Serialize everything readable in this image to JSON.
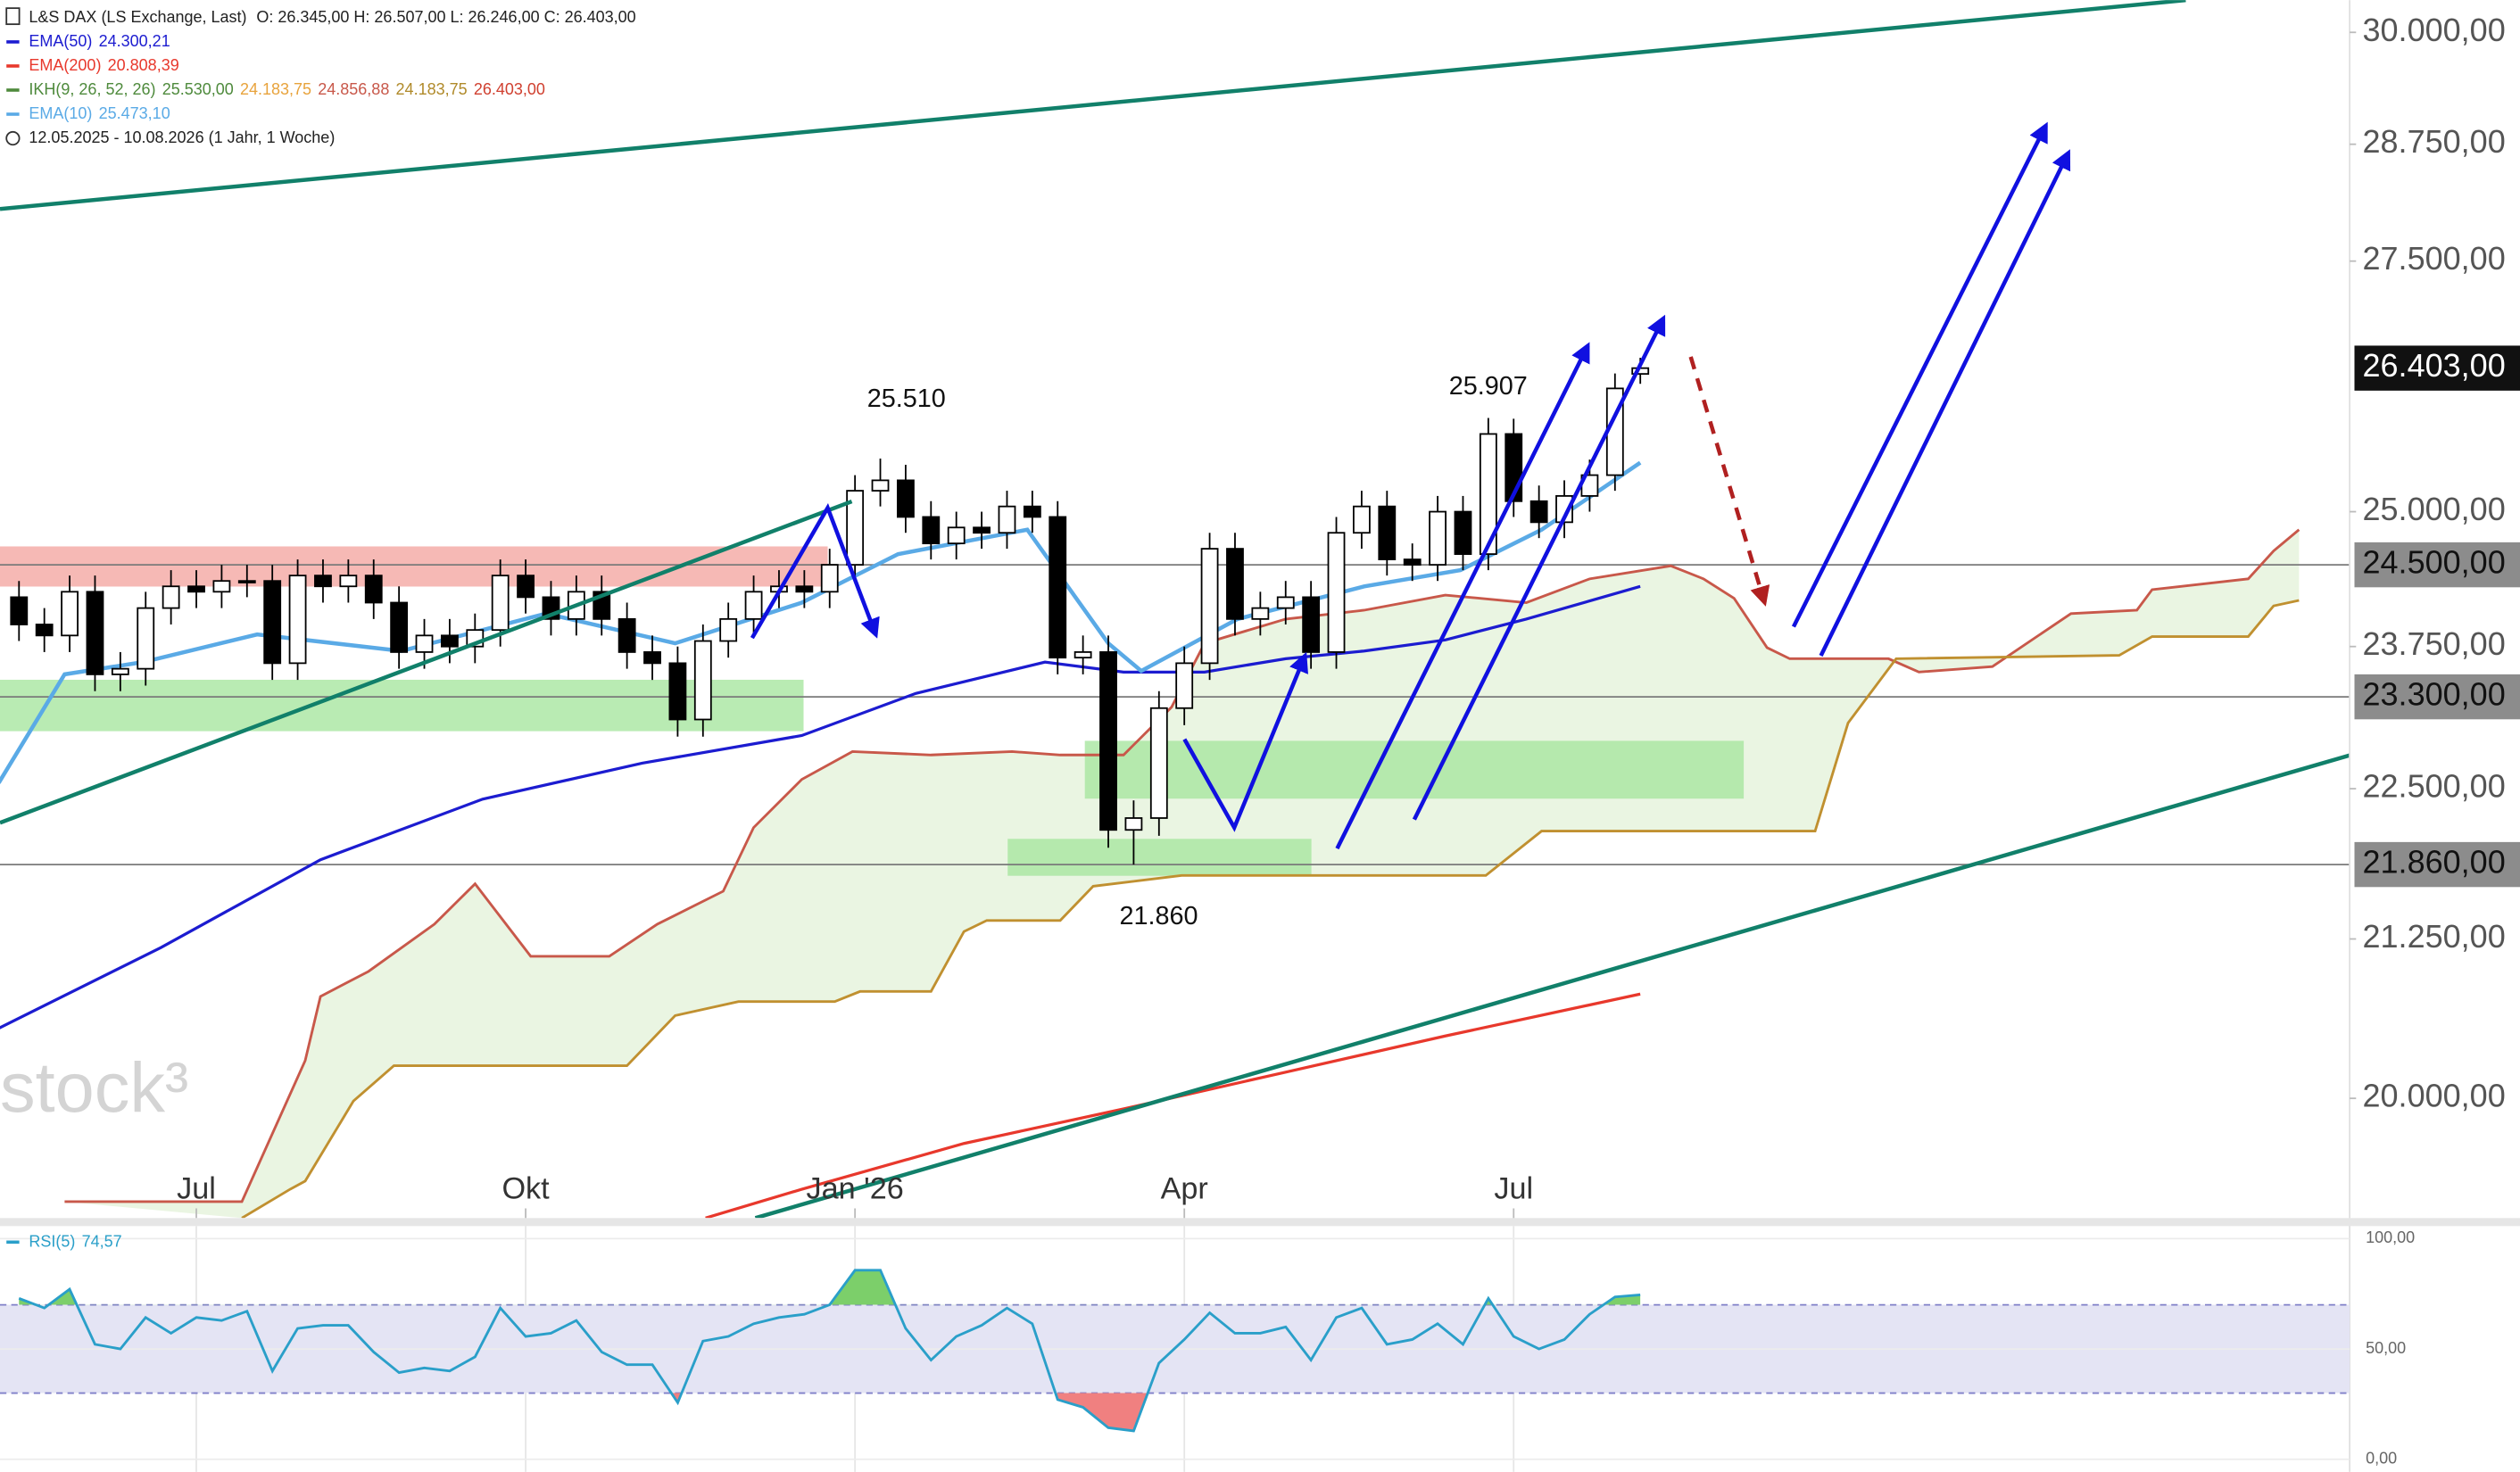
{
  "chart_data": [
    {
      "type": "candlestick",
      "title": "L&S DAX (LS Exchange, Last)",
      "ohlc_text": "O: 26.345,00  H: 26.507,00  L: 26.246,00  C: 26.403,00",
      "date_range": "12.05.2025 - 10.08.2026  (1 Jahr, 1 Woche)",
      "watermark": "stock³",
      "log_scale": true,
      "xlim": [
        -0.75,
        92
      ],
      "xticks": [
        {
          "value": 7,
          "label": "Jul"
        },
        {
          "value": 20,
          "label": "Okt"
        },
        {
          "value": 33,
          "label": "Jan '26"
        },
        {
          "value": 46,
          "label": "Apr"
        },
        {
          "value": 59,
          "label": "Jul"
        }
      ],
      "ylim": [
        19110,
        30370
      ],
      "yticks": [
        {
          "value": 20000,
          "label": "20.000,00"
        },
        {
          "value": 21250,
          "label": "21.250,00"
        },
        {
          "value": 22500,
          "label": "22.500,00"
        },
        {
          "value": 23750,
          "label": "23.750,00"
        },
        {
          "value": 25000,
          "label": "25.000,00"
        },
        {
          "value": 27500,
          "label": "27.500,00"
        },
        {
          "value": 28750,
          "label": "28.750,00"
        },
        {
          "value": 30000,
          "label": "30.000,00"
        }
      ],
      "levels": [
        {
          "value": 24500,
          "label": "24.500,00"
        },
        {
          "value": 23300,
          "label": "23.300,00"
        },
        {
          "value": 21860,
          "label": "21.860,00"
        }
      ],
      "last_price": {
        "value": 26403,
        "label": "26.403,00"
      },
      "annotations": [
        "25.510",
        "25.907",
        "21.860"
      ],
      "up_color": "#ffffff",
      "down_color": "#000000",
      "open": [
        24200,
        23950,
        23850,
        24250,
        23500,
        23550,
        24100,
        24300,
        24250,
        24350,
        24350,
        23600,
        24400,
        24300,
        24400,
        24150,
        23700,
        23850,
        23750,
        23900,
        24400,
        24200,
        24000,
        24250,
        24000,
        23700,
        23600,
        23100,
        23800,
        24000,
        24250,
        24300,
        24250,
        24500,
        25200,
        25300,
        24950,
        24700,
        24850,
        24800,
        25050,
        24950,
        23650,
        23700,
        22150,
        22250,
        23200,
        23600,
        24650,
        24000,
        24100,
        24200,
        23700,
        24800,
        25050,
        24550,
        24500,
        25000,
        24600,
        25750,
        25100,
        24900,
        25150,
        25350,
        26345
      ],
      "high": [
        24350,
        24100,
        24400,
        24400,
        23700,
        24250,
        24450,
        24450,
        24500,
        24500,
        24500,
        24550,
        24550,
        24550,
        24550,
        24300,
        24000,
        24000,
        24050,
        24550,
        24550,
        24350,
        24400,
        24400,
        24150,
        23850,
        23750,
        23950,
        24150,
        24400,
        24450,
        24450,
        24650,
        25350,
        25510,
        25450,
        25100,
        25000,
        25000,
        25200,
        25200,
        25100,
        23850,
        23850,
        22400,
        23350,
        23750,
        24800,
        24800,
        24250,
        24350,
        24350,
        24950,
        25200,
        25200,
        24700,
        25150,
        25150,
        25907,
        25900,
        25250,
        25300,
        25500,
        26350,
        26507
      ],
      "low": [
        23800,
        23700,
        23700,
        23350,
        23350,
        23400,
        23950,
        24100,
        24100,
        24200,
        23450,
        23450,
        24150,
        24150,
        24000,
        23550,
        23550,
        23600,
        23600,
        23750,
        24050,
        23850,
        23850,
        23850,
        23550,
        23450,
        22950,
        22950,
        23650,
        23850,
        24100,
        24100,
        24100,
        24350,
        25050,
        24800,
        24550,
        24550,
        24650,
        24650,
        24800,
        23500,
        23500,
        22000,
        21860,
        22100,
        23050,
        23450,
        23850,
        23850,
        23950,
        23550,
        23550,
        24650,
        24400,
        24350,
        24350,
        24450,
        24450,
        24950,
        24750,
        24750,
        25000,
        25200,
        26246
      ],
      "close": [
        23950,
        23850,
        24250,
        23500,
        23550,
        24100,
        24300,
        24250,
        24350,
        24350,
        23600,
        24400,
        24300,
        24400,
        24150,
        23700,
        23850,
        23750,
        23900,
        24400,
        24200,
        24000,
        24250,
        24000,
        23700,
        23600,
        23100,
        23800,
        24000,
        24250,
        24300,
        24250,
        24500,
        25200,
        25300,
        24950,
        24700,
        24850,
        24800,
        25050,
        24950,
        23650,
        23700,
        22150,
        22250,
        23200,
        23600,
        24650,
        24000,
        24100,
        24200,
        23700,
        24800,
        25050,
        24550,
        24500,
        25000,
        24600,
        25750,
        25100,
        24900,
        25150,
        25350,
        26200,
        26403
      ],
      "lines": [
        {
          "name": "EMA(50)",
          "value_text": "24.300,21",
          "color": "#1c1cd0",
          "x": [
            -0.8,
            5.6,
            11.9,
            18.3,
            24.6,
            30.9,
            35.4,
            40.5,
            43.6,
            46.8,
            50,
            53.1,
            56.3,
            59.5,
            64
          ],
          "values": [
            20540,
            21180,
            21900,
            22410,
            22720,
            22960,
            23330,
            23610,
            23520,
            23520,
            23640,
            23710,
            23810,
            24000,
            24300
          ]
        },
        {
          "name": "EMA(200)",
          "value_text": "20.808,39",
          "color": "#e8382c",
          "x": [
            27.1,
            30.9,
            37.3,
            43.6,
            50,
            56.3,
            64
          ],
          "values": [
            19110,
            19320,
            19660,
            19920,
            20200,
            20480,
            20810
          ]
        },
        {
          "name": "EMA(10)",
          "value_text": "25.473,10",
          "color": "#5aaae6",
          "x": [
            -0.8,
            1.8,
            4.9,
            9.4,
            15.1,
            20.8,
            25.9,
            30.9,
            34.7,
            39.8,
            43,
            44.3,
            48.1,
            53.1,
            56.9,
            60.1,
            64
          ],
          "values": [
            22550,
            23500,
            23610,
            23860,
            23710,
            24050,
            23780,
            24150,
            24600,
            24830,
            23780,
            23530,
            24000,
            24300,
            24450,
            24830,
            25470
          ]
        }
      ],
      "ichimoku": {
        "name": "IKH(9, 26, 52, 26)",
        "color": "#4e8a3c",
        "cloud_color": "#e3f2d8",
        "value_texts": [
          "25.530,00",
          "24.183,75",
          "24.856,88",
          "24.183,75",
          "26.403,00"
        ],
        "value_colors": [
          "#4e8a3c",
          "#e8a33c",
          "#c8584a",
          "#b08a2a",
          "#d04030"
        ],
        "span_a": {
          "color": "#c8584a",
          "x": [
            1.8,
            8.8,
            11.3,
            11.9,
            13.8,
            16.4,
            18,
            20.2,
            23.3,
            25.2,
            27.8,
            29,
            30.9,
            32.9,
            36,
            39.2,
            41.1,
            43.6,
            45.5,
            46.8,
            50,
            53.1,
            56.3,
            59.5,
            62,
            65.2,
            66.5,
            67.7,
            69,
            69.9,
            73.8,
            75,
            77.9,
            81,
            83.6,
            84.2,
            88,
            89,
            90
          ],
          "values": [
            19230,
            19230,
            20290,
            20790,
            20990,
            21370,
            21700,
            21110,
            21110,
            21370,
            21640,
            22170,
            22580,
            22820,
            22790,
            22820,
            22790,
            22790,
            23210,
            23780,
            24000,
            24080,
            24220,
            24150,
            24370,
            24490,
            24370,
            24190,
            23740,
            23640,
            23640,
            23520,
            23570,
            24050,
            24080,
            24270,
            24370,
            24630,
            24830
          ]
        },
        "span_b": {
          "color": "#c09030",
          "x": [
            8.8,
            10.7,
            11.3,
            13.2,
            14.8,
            24,
            25.9,
            28.4,
            32.2,
            33.2,
            36,
            37.3,
            38.2,
            41.1,
            42.4,
            45.9,
            57.9,
            60.1,
            70.9,
            72.2,
            74.1,
            82.9,
            84.2,
            88,
            89,
            90
          ],
          "values": [
            19110,
            19320,
            19380,
            19980,
            20250,
            20250,
            20640,
            20750,
            20750,
            20830,
            20830,
            21310,
            21400,
            21400,
            21680,
            21770,
            21770,
            22140,
            22140,
            23070,
            23640,
            23670,
            23840,
            23840,
            24120,
            24170
          ]
        }
      }
    },
    {
      "type": "line",
      "title": "RSI(5)",
      "value_text": "74,57",
      "color": "#2a9fc9",
      "xlim": [
        -0.75,
        92
      ],
      "ylim": [
        -5.7,
        105.7
      ],
      "yticks": [
        {
          "value": 0,
          "label": "0,00"
        },
        {
          "value": 50,
          "label": "50,00"
        },
        {
          "value": 100,
          "label": "100,00"
        }
      ],
      "bands": [
        30,
        70
      ],
      "band_color": "#e4e4f4",
      "over_color": "#7ccf6a",
      "under_color": "#f08080",
      "values": [
        72.9,
        68.6,
        77.1,
        52.1,
        50,
        64.3,
        57.1,
        64.3,
        62.9,
        67.1,
        40,
        59.3,
        60.7,
        60.7,
        48.6,
        39.3,
        41.4,
        40,
        46.4,
        68.6,
        55.7,
        57.1,
        62.9,
        48.6,
        42.9,
        42.9,
        25.7,
        53.6,
        55.7,
        61.4,
        64.3,
        65.7,
        70,
        85.7,
        85.7,
        59.3,
        45,
        55.7,
        60.7,
        68.6,
        61.4,
        27.1,
        23.6,
        14.3,
        12.9,
        43.6,
        54.3,
        66.4,
        57.1,
        57.1,
        60,
        45,
        64.3,
        68.6,
        52.1,
        54.3,
        61.4,
        52.1,
        72.9,
        55.7,
        50,
        54.3,
        65.7,
        73.6,
        74.57
      ]
    }
  ]
}
